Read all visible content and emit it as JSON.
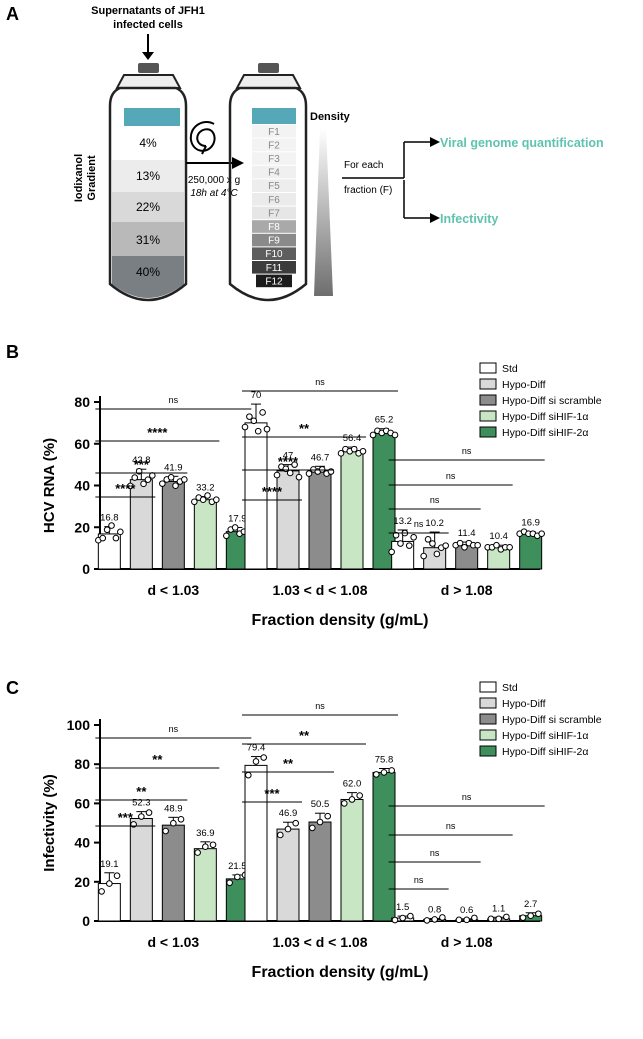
{
  "panel_a": {
    "panel_label": "A",
    "source_label_line1": "Supernatants of JFH1",
    "source_label_line2": "infected cells",
    "gradient_label_line1": "Iodixanol",
    "gradient_label_line2": "Gradient",
    "gradient_layers": [
      "4%",
      "13%",
      "22%",
      "31%",
      "40%"
    ],
    "centrifugation_line1": "250,000 x g",
    "centrifugation_line2": "18h at 4°C",
    "fractions": [
      "F1",
      "F2",
      "F3",
      "F4",
      "F5",
      "F6",
      "F7",
      "F8",
      "F9",
      "F10",
      "F11",
      "F12"
    ],
    "density_label": "Density",
    "for_each_label": "For each",
    "fraction_label": "fraction (F)",
    "output_quantification": "Viral genome quantification",
    "output_infectivity": "Infectivity",
    "accent_color": "#5fc3b0"
  },
  "chart_data": [
    {
      "type": "bar",
      "panel_label": "B",
      "categories": [
        "d < 1.03",
        "1.03 < d < 1.08",
        "d > 1.08"
      ],
      "xlabel": "Fraction density (g/mL)",
      "ylabel": "HCV RNA (%)",
      "ylim": [
        0,
        80
      ],
      "yticks": [
        0,
        20,
        40,
        60,
        80
      ],
      "legend_position": "top-right",
      "series": [
        {
          "name": "Std",
          "color": "#ffffff",
          "values": [
            16.8,
            70,
            13.2
          ]
        },
        {
          "name": "Hypo-Diff",
          "color": "#d9d9d9",
          "values": [
            42.8,
            47,
            10.2
          ]
        },
        {
          "name": "Hypo-Diff si scramble",
          "color": "#8c8c8c",
          "values": [
            41.9,
            46.7,
            11.4
          ]
        },
        {
          "name": "Hypo-Diff siHIF-1α",
          "color": "#c8e6c4",
          "values": [
            33.2,
            56.4,
            10.4
          ]
        },
        {
          "name": "Hypo-Diff siHIF-2α",
          "color": "#3e8f5b",
          "values": [
            17.9,
            65.2,
            16.9
          ]
        }
      ],
      "value_labels": [
        [
          "16.8",
          "70",
          "13.2"
        ],
        [
          "42.8",
          "47",
          "10.2"
        ],
        [
          "41.9",
          "46.7",
          "11.4"
        ],
        [
          "33.2",
          "56.4",
          "10.4"
        ],
        [
          "17.9",
          "65.2",
          "16.9"
        ]
      ],
      "significance": [
        [
          "****",
          "***",
          "****",
          "ns"
        ],
        [
          "****",
          "****",
          "**",
          "ns"
        ],
        [
          "ns",
          "ns",
          "ns",
          "ns"
        ]
      ]
    },
    {
      "type": "bar",
      "panel_label": "C",
      "categories": [
        "d < 1.03",
        "1.03 < d < 1.08",
        "d > 1.08"
      ],
      "xlabel": "Fraction density (g/mL)",
      "ylabel": "Infectivity (%)",
      "ylim": [
        0,
        100
      ],
      "yticks": [
        0,
        20,
        40,
        60,
        80,
        100
      ],
      "legend_position": "top-right",
      "series": [
        {
          "name": "Std",
          "color": "#ffffff",
          "values": [
            19.1,
            79.4,
            1.5
          ]
        },
        {
          "name": "Hypo-Diff",
          "color": "#d9d9d9",
          "values": [
            52.3,
            46.9,
            0.8
          ]
        },
        {
          "name": "Hypo-Diff si scramble",
          "color": "#8c8c8c",
          "values": [
            48.9,
            50.5,
            0.6
          ]
        },
        {
          "name": "Hypo-Diff siHIF-1α",
          "color": "#c8e6c4",
          "values": [
            36.9,
            62.0,
            1.1
          ]
        },
        {
          "name": "Hypo-Diff siHIF-2α",
          "color": "#3e8f5b",
          "values": [
            21.5,
            75.8,
            2.7
          ]
        }
      ],
      "value_labels": [
        [
          "19.1",
          "79.4",
          "1.5"
        ],
        [
          "52.3",
          "46.9",
          "0.8"
        ],
        [
          "48.9",
          "50.5",
          "0.6"
        ],
        [
          "36.9",
          "62.0",
          "1.1"
        ],
        [
          "21.5",
          "75.8",
          "2.7"
        ]
      ],
      "significance": [
        [
          "***",
          "**",
          "**",
          "ns"
        ],
        [
          "***",
          "**",
          "**",
          "ns"
        ],
        [
          "ns",
          "ns",
          "ns",
          "ns"
        ]
      ]
    }
  ]
}
